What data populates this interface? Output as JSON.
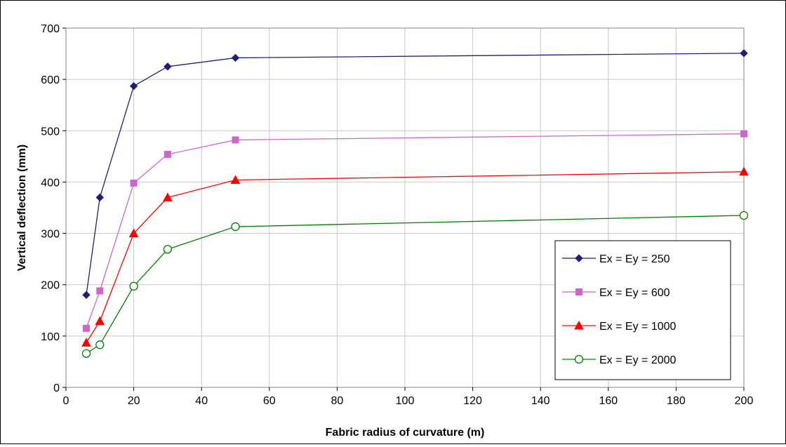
{
  "chart_data": {
    "type": "line",
    "xlabel": "Fabric radius of curvature (m)",
    "ylabel": "Vertical deflection (mm)",
    "xlim": [
      0,
      200
    ],
    "ylim": [
      0,
      700
    ],
    "xticks": [
      "0",
      "20",
      "40",
      "60",
      "80",
      "100",
      "120",
      "140",
      "160",
      "180",
      "200"
    ],
    "yticks": [
      "0",
      "100",
      "200",
      "300",
      "400",
      "500",
      "600",
      "700"
    ],
    "grid": true,
    "legend_position": "bottom-right",
    "x": [
      6,
      10,
      20,
      30,
      50,
      200
    ],
    "series": [
      {
        "name": "Ex = Ey = 250",
        "marker": "diamond",
        "color": "#1f1f7a",
        "values": [
          180,
          370,
          587,
          625,
          642,
          651
        ]
      },
      {
        "name": "Ex = Ey = 600",
        "marker": "square",
        "color": "#cc66cc",
        "values": [
          115,
          188,
          398,
          454,
          482,
          494
        ]
      },
      {
        "name": "Ex = Ey = 1000",
        "marker": "triangle",
        "color": "#ff0000",
        "values": [
          87,
          129,
          300,
          370,
          404,
          420
        ]
      },
      {
        "name": "Ex = Ey = 2000",
        "marker": "circle-open",
        "color": "#008000",
        "values": [
          66,
          83,
          197,
          269,
          313,
          335
        ]
      }
    ]
  }
}
